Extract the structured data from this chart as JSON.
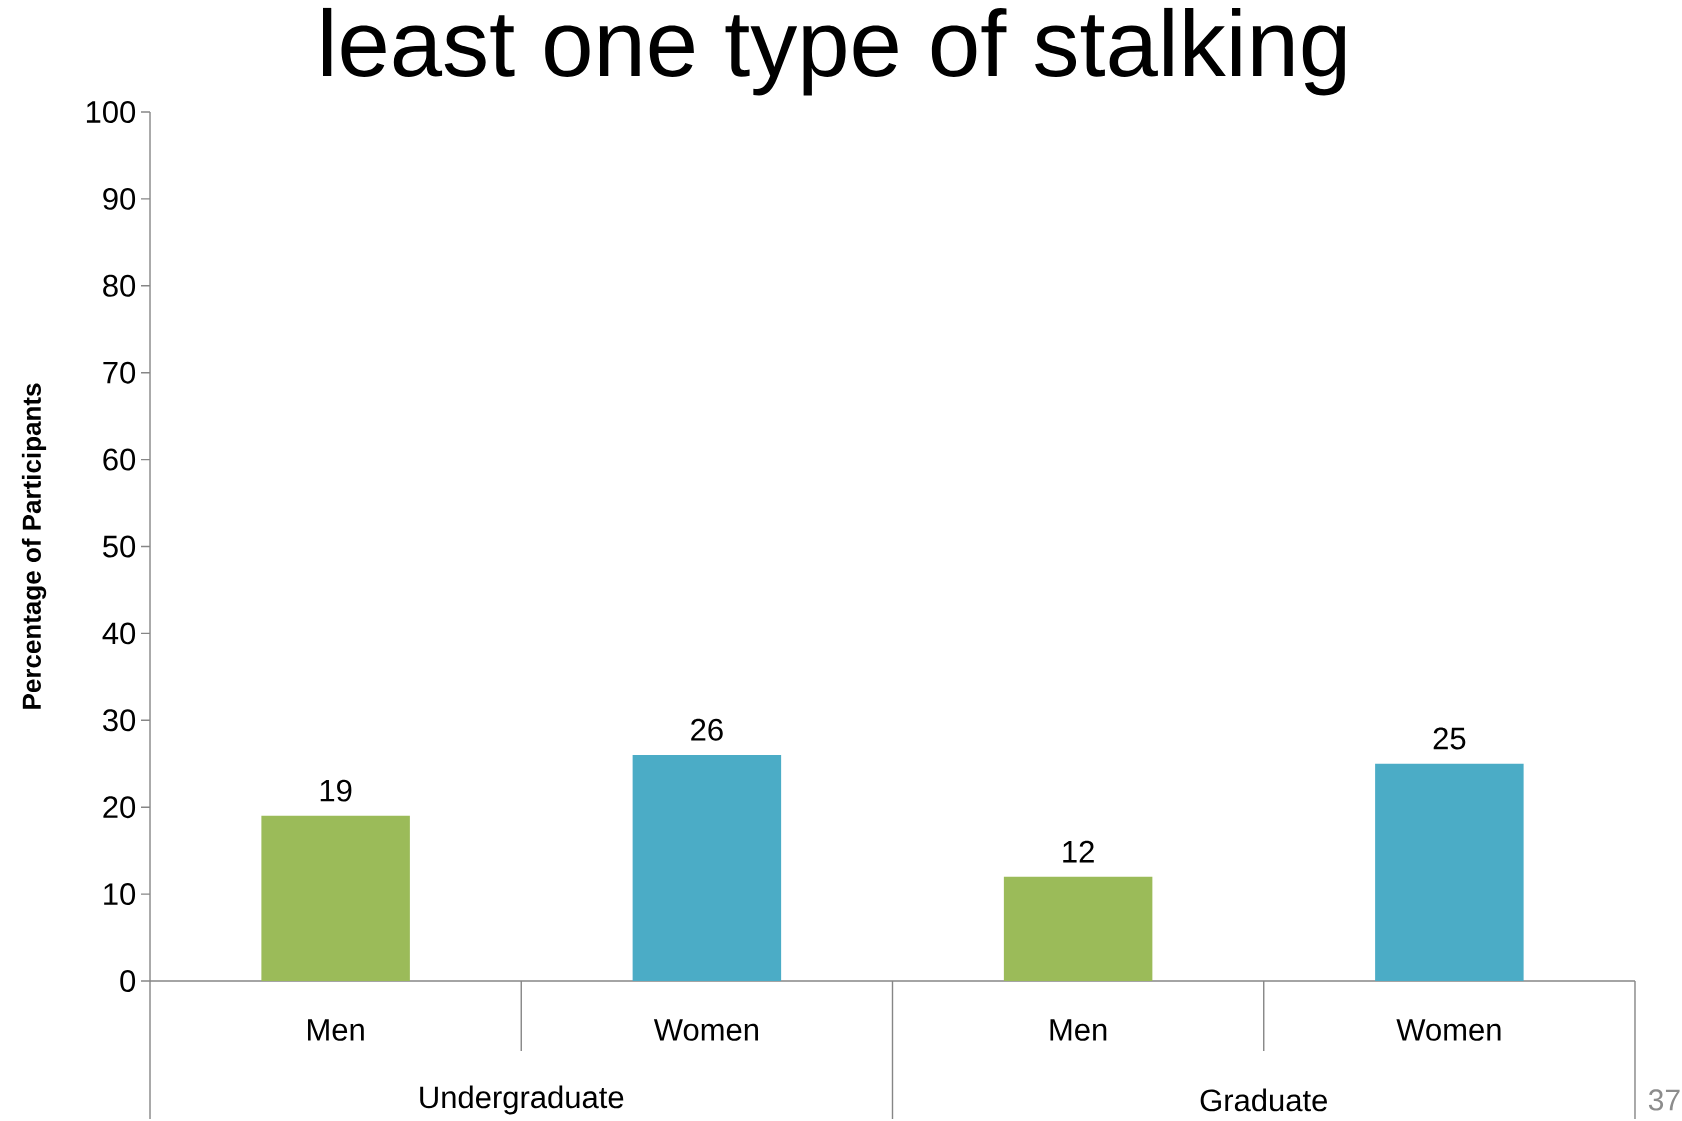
{
  "chart_data": {
    "type": "bar",
    "title": "least one type of stalking",
    "ylabel": "Percentage of Participants",
    "categories": [
      "Undergraduate",
      "Graduate"
    ],
    "series": [
      {
        "name": "Men",
        "color": "#9bbb59",
        "values": [
          19,
          12
        ]
      },
      {
        "name": "Women",
        "color": "#4bacc6",
        "values": [
          26,
          25
        ]
      }
    ],
    "ylim": [
      0,
      100
    ],
    "yticks": [
      0,
      10,
      20,
      30,
      40,
      50,
      60,
      70,
      80,
      90,
      100
    ],
    "data_labels": true,
    "annotations": [
      "37"
    ]
  }
}
